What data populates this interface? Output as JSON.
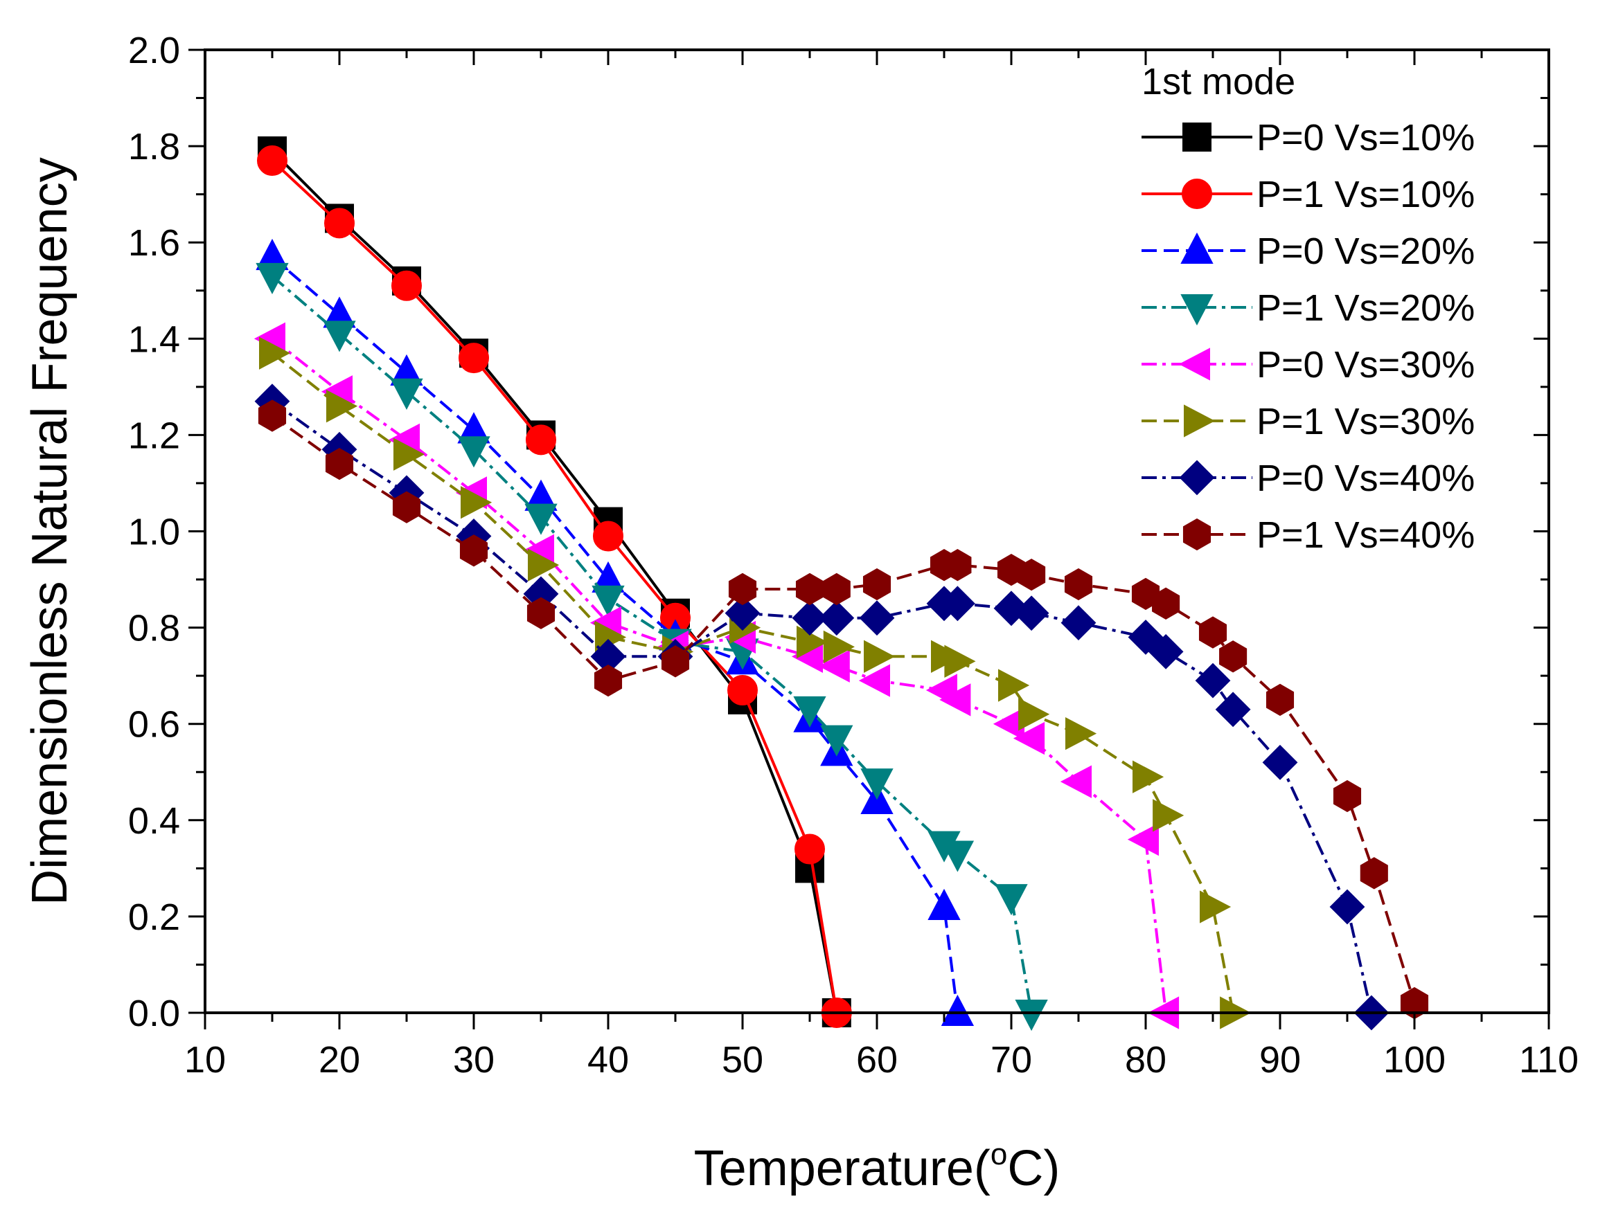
{
  "chart_data": {
    "type": "line",
    "title": "",
    "xlabel": "Temperature(",
    "xlabel_sup": "o",
    "xlabel_suffix": "C)",
    "ylabel": "Dimensionless Natural Frequency",
    "xlim": [
      10,
      110
    ],
    "ylim": [
      0.0,
      2.0
    ],
    "x_ticks": [
      "10",
      "20",
      "30",
      "40",
      "50",
      "60",
      "70",
      "80",
      "90",
      "100",
      "110"
    ],
    "y_ticks": [
      "0.0",
      "0.2",
      "0.4",
      "0.6",
      "0.8",
      "1.0",
      "1.2",
      "1.4",
      "1.6",
      "1.8",
      "2.0"
    ],
    "grid": false,
    "legend_title": "1st mode",
    "legend_position": "top-right",
    "series": [
      {
        "name": "P=0 Vs=10%",
        "color": "#000000",
        "marker": "square",
        "dash": "solid",
        "x": [
          15,
          20,
          25,
          30,
          35,
          40,
          45,
          50,
          55,
          57
        ],
        "y": [
          1.79,
          1.65,
          1.52,
          1.37,
          1.2,
          1.02,
          0.83,
          0.65,
          0.3,
          0.0
        ]
      },
      {
        "name": "P=1 Vs=10%",
        "color": "#ff0000",
        "marker": "circle",
        "dash": "solid",
        "x": [
          15,
          20,
          25,
          30,
          35,
          40,
          45,
          50,
          55,
          57
        ],
        "y": [
          1.77,
          1.64,
          1.51,
          1.36,
          1.19,
          0.99,
          0.82,
          0.67,
          0.34,
          0.0
        ]
      },
      {
        "name": "P=0 Vs=20%",
        "color": "#0000ff",
        "marker": "triangle-up",
        "dash": "dash",
        "x": [
          15,
          20,
          25,
          30,
          35,
          40,
          45,
          50,
          55,
          57,
          60,
          65,
          66
        ],
        "y": [
          1.57,
          1.45,
          1.33,
          1.21,
          1.07,
          0.9,
          0.78,
          0.73,
          0.61,
          0.54,
          0.44,
          0.22,
          0.0
        ]
      },
      {
        "name": "P=1 Vs=20%",
        "color": "#008080",
        "marker": "triangle-down",
        "dash": "dashdot",
        "x": [
          15,
          20,
          25,
          30,
          35,
          40,
          45,
          50,
          55,
          57,
          60,
          65,
          66,
          70,
          71.5
        ],
        "y": [
          1.53,
          1.41,
          1.29,
          1.17,
          1.03,
          0.86,
          0.77,
          0.75,
          0.63,
          0.57,
          0.48,
          0.35,
          0.33,
          0.24,
          0.0
        ]
      },
      {
        "name": "P=0 Vs=30%",
        "color": "#ff00ff",
        "marker": "triangle-left",
        "dash": "dashdot",
        "x": [
          15,
          20,
          25,
          30,
          35,
          40,
          45,
          50,
          55,
          57,
          60,
          65,
          66,
          70,
          71.5,
          75,
          80,
          81.5
        ],
        "y": [
          1.4,
          1.29,
          1.19,
          1.08,
          0.96,
          0.81,
          0.76,
          0.78,
          0.74,
          0.72,
          0.69,
          0.67,
          0.65,
          0.6,
          0.57,
          0.48,
          0.36,
          0.0
        ]
      },
      {
        "name": "P=1 Vs=30%",
        "color": "#808000",
        "marker": "triangle-right",
        "dash": "dash",
        "x": [
          15,
          20,
          25,
          30,
          35,
          40,
          45,
          50,
          55,
          57,
          60,
          65,
          66,
          70,
          71.5,
          75,
          80,
          81.5,
          85,
          86.5
        ],
        "y": [
          1.37,
          1.26,
          1.16,
          1.06,
          0.93,
          0.78,
          0.75,
          0.8,
          0.77,
          0.76,
          0.74,
          0.74,
          0.73,
          0.68,
          0.62,
          0.58,
          0.49,
          0.41,
          0.22,
          0.0
        ]
      },
      {
        "name": "P=0 Vs=40%",
        "color": "#000080",
        "marker": "diamond",
        "dash": "dashdot",
        "x": [
          15,
          20,
          25,
          30,
          35,
          40,
          45,
          50,
          55,
          57,
          60,
          65,
          66,
          70,
          71.5,
          75,
          80,
          81.5,
          85,
          86.5,
          90,
          95,
          96.8
        ],
        "y": [
          1.27,
          1.17,
          1.08,
          0.99,
          0.87,
          0.74,
          0.74,
          0.83,
          0.82,
          0.82,
          0.82,
          0.85,
          0.85,
          0.84,
          0.83,
          0.81,
          0.78,
          0.75,
          0.69,
          0.63,
          0.52,
          0.22,
          0.0
        ]
      },
      {
        "name": "P=1 Vs=40%",
        "color": "#800000",
        "marker": "hexagon",
        "dash": "dash",
        "x": [
          15,
          20,
          25,
          30,
          35,
          40,
          45,
          50,
          55,
          57,
          60,
          65,
          66,
          70,
          71.5,
          75,
          80,
          81.5,
          85,
          86.5,
          90,
          95,
          97,
          100
        ],
        "y": [
          1.24,
          1.14,
          1.05,
          0.96,
          0.83,
          0.69,
          0.73,
          0.88,
          0.88,
          0.88,
          0.89,
          0.93,
          0.93,
          0.92,
          0.91,
          0.89,
          0.87,
          0.85,
          0.79,
          0.74,
          0.65,
          0.45,
          0.29,
          0.02
        ]
      }
    ]
  }
}
